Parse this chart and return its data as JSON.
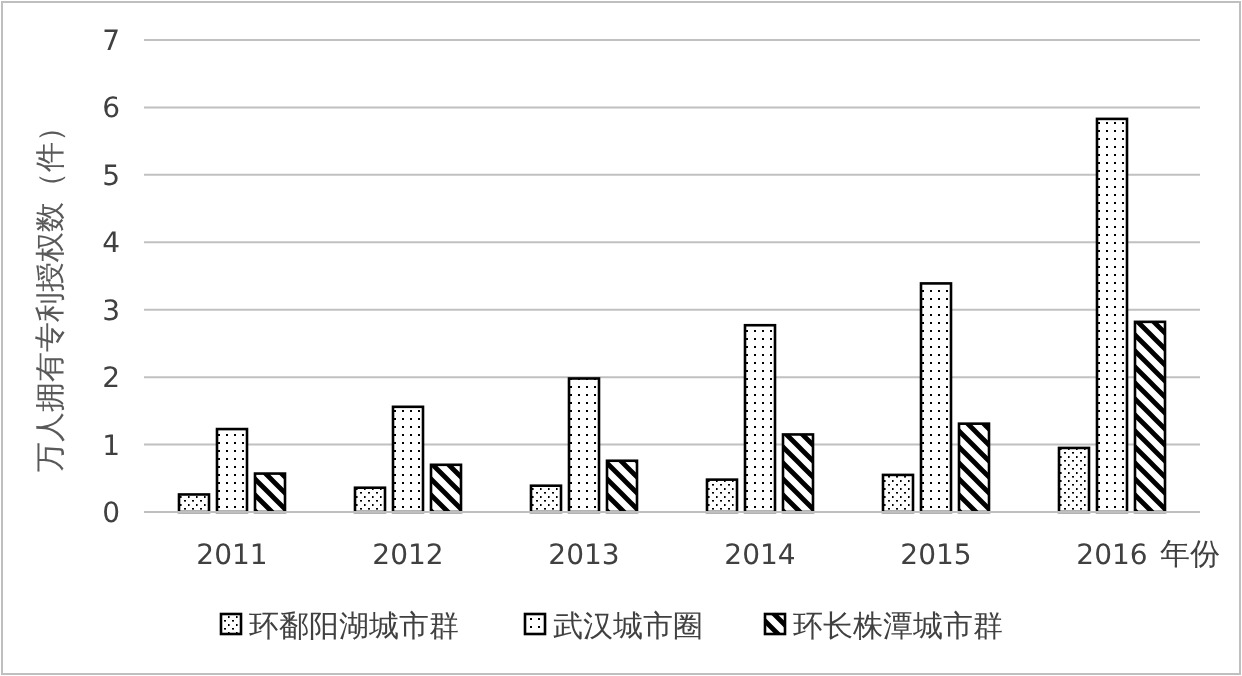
{
  "chart_data": {
    "type": "bar",
    "xlabel": "年份",
    "ylabel": "万人拥有专利授权数（件）",
    "categories": [
      "2011",
      "2012",
      "2013",
      "2014",
      "2015",
      "2016"
    ],
    "series": [
      {
        "name": "环鄱阳湖城市群",
        "color": "#000000",
        "values": [
          0.26,
          0.36,
          0.39,
          0.48,
          0.55,
          0.95
        ]
      },
      {
        "name": "武汉城市圈",
        "color": "#000000",
        "values": [
          1.23,
          1.56,
          1.98,
          2.77,
          3.39,
          5.83
        ]
      },
      {
        "name": "环长株潭城市群",
        "color": "#000000",
        "values": [
          0.57,
          0.7,
          0.76,
          1.15,
          1.31,
          2.82
        ]
      }
    ],
    "ylim": [
      0,
      7
    ],
    "yticks": [
      0,
      1,
      2,
      3,
      4,
      5,
      6,
      7
    ],
    "grid": "y",
    "legend": "bottom"
  }
}
